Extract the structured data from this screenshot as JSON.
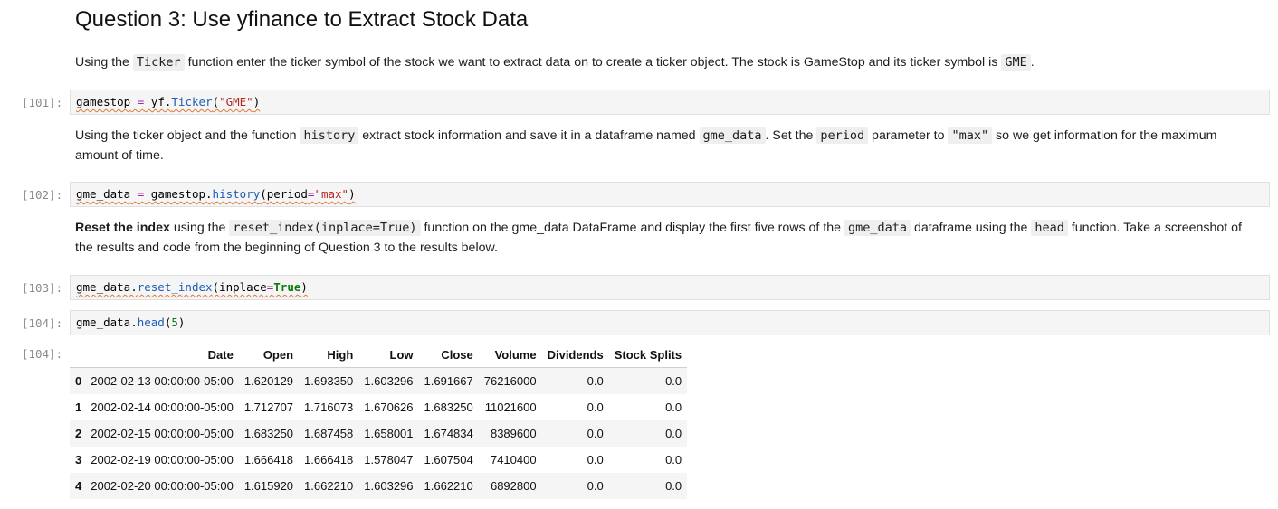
{
  "heading": "Question 3: Use yfinance to Extract Stock Data",
  "md1": {
    "t1": "Using the ",
    "c1": "Ticker",
    "t2": " function enter the ticker symbol of the stock we want to extract data on to create a ticker object. The stock is GameStop and its ticker symbol is ",
    "c2": "GME",
    "t3": "."
  },
  "md2": {
    "t1": "Using the ticker object and the function ",
    "c1": "history",
    "t2": " extract stock information and save it in a dataframe named ",
    "c2": "gme_data",
    "t3": ". Set the ",
    "c3": "period",
    "t4": " parameter to ",
    "c4": "\"max\"",
    "t5": " so we get information for the maximum amount of time."
  },
  "md3": {
    "b1": "Reset the index",
    "t1": " using the ",
    "c1": "reset_index(inplace=True)",
    "t2": " function on the gme_data DataFrame and display the first five rows of the ",
    "c2": "gme_data",
    "t3": " dataframe using the ",
    "c3": "head",
    "t4": " function. Take a screenshot of the results and code from the beginning of Question 3 to the results below."
  },
  "cells": [
    {
      "prompt": "[101]:",
      "p1": "gamestop",
      "p2": " ",
      "p3": "=",
      "p4": " yf.",
      "p5": "Ticker",
      "p6": "(",
      "p7": "\"GME\"",
      "p8": ")"
    },
    {
      "prompt": "[102]:",
      "p1": "gme_data",
      "p2": " ",
      "p3": "=",
      "p4": " gamestop.",
      "p5": "history",
      "p6": "(period",
      "p7": "=",
      "p8": "\"max\"",
      "p9": ")"
    },
    {
      "prompt": "[103]:",
      "p1": "gme_data.",
      "p2": "reset_index",
      "p3": "(inplace",
      "p4": "=",
      "p5": "True",
      "p6": ")"
    },
    {
      "prompt": "[104]:",
      "p1": "gme_data.",
      "p2": "head",
      "p3": "(",
      "p4": "5",
      "p5": ")"
    }
  ],
  "output_prompt": "[104]:",
  "table": {
    "headers": [
      "",
      "Date",
      "Open",
      "High",
      "Low",
      "Close",
      "Volume",
      "Dividends",
      "Stock Splits"
    ],
    "rows": [
      [
        "0",
        "2002-02-13 00:00:00-05:00",
        "1.620129",
        "1.693350",
        "1.603296",
        "1.691667",
        "76216000",
        "0.0",
        "0.0"
      ],
      [
        "1",
        "2002-02-14 00:00:00-05:00",
        "1.712707",
        "1.716073",
        "1.670626",
        "1.683250",
        "11021600",
        "0.0",
        "0.0"
      ],
      [
        "2",
        "2002-02-15 00:00:00-05:00",
        "1.683250",
        "1.687458",
        "1.658001",
        "1.674834",
        "8389600",
        "0.0",
        "0.0"
      ],
      [
        "3",
        "2002-02-19 00:00:00-05:00",
        "1.666418",
        "1.666418",
        "1.578047",
        "1.607504",
        "7410400",
        "0.0",
        "0.0"
      ],
      [
        "4",
        "2002-02-20 00:00:00-05:00",
        "1.615920",
        "1.662210",
        "1.603296",
        "1.662210",
        "6892800",
        "0.0",
        "0.0"
      ]
    ]
  }
}
